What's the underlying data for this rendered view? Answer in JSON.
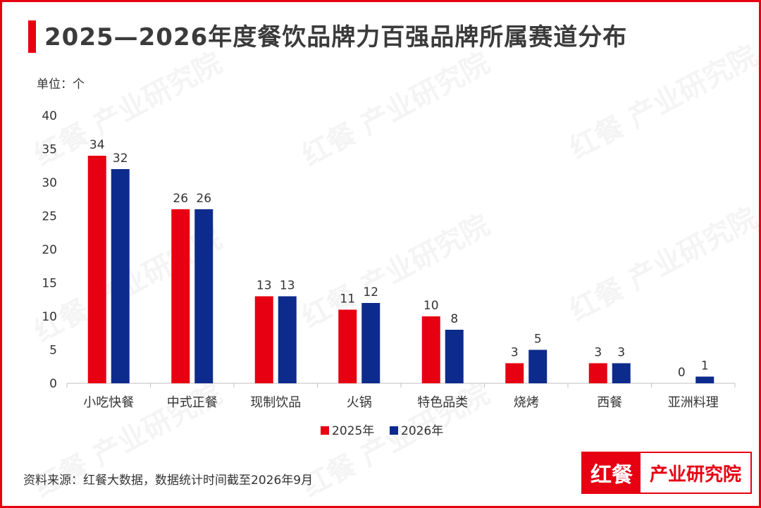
{
  "title": "2025—2026年度餐饮品牌力百强品牌所属赛道分布",
  "unit_label": "单位：个",
  "source": "资料来源：红餐大数据，数据统计时间截至2026年9月",
  "watermark": "红餐 产业研究院",
  "logo": {
    "left": "红餐",
    "right": "产业研究院"
  },
  "colors": {
    "frame": "#e60012",
    "series_2025": "#e60012",
    "series_2026": "#0d2b8c"
  },
  "chart_data": {
    "type": "bar",
    "title": "2025—2026年度餐饮品牌力百强品牌所属赛道分布",
    "xlabel": "",
    "ylabel": "单位：个",
    "categories": [
      "小吃快餐",
      "中式正餐",
      "现制饮品",
      "火锅",
      "特色品类",
      "烧烤",
      "西餐",
      "亚洲料理"
    ],
    "series": [
      {
        "name": "2025年",
        "values": [
          34,
          26,
          13,
          11,
          10,
          3,
          3,
          0
        ]
      },
      {
        "name": "2026年",
        "values": [
          32,
          26,
          13,
          12,
          8,
          5,
          3,
          1
        ]
      }
    ],
    "ylim": [
      0,
      40
    ],
    "yticks": [
      0,
      5,
      10,
      15,
      20,
      25,
      30,
      35,
      40
    ],
    "grid": false,
    "legend_position": "bottom-center",
    "data_labels": true
  }
}
